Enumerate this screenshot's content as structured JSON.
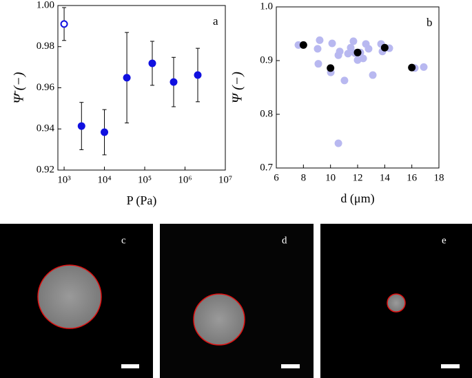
{
  "chart_data": [
    {
      "type": "scatter",
      "panel": "a",
      "x_label": "P (Pa)",
      "y_label": "Ψ̄ (−)",
      "xscale": "log",
      "xlim": [
        700,
        10000000
      ],
      "xticks": [
        {
          "value": 1000,
          "label": "10³"
        },
        {
          "value": 10000,
          "label": "10⁴"
        },
        {
          "value": 100000,
          "label": "10⁵"
        },
        {
          "value": 1000000,
          "label": "10⁶"
        },
        {
          "value": 10000000,
          "label": "10⁷"
        }
      ],
      "ylim": [
        0.92,
        1.0
      ],
      "yticks": [
        0.92,
        0.94,
        0.96,
        0.98,
        {
          "value": 1.0,
          "label": "1.00"
        }
      ],
      "series": [
        {
          "color": "#1010e0",
          "filled": false,
          "x": [
            1000
          ],
          "values": [
            0.991
          ],
          "errors": [
            0.008
          ]
        },
        {
          "color": "#1010e0",
          "filled": true,
          "x": [
            2700,
            10000,
            36000,
            154000,
            522000,
            2070000
          ],
          "values": [
            0.9414,
            0.9384,
            0.9649,
            0.9719,
            0.9628,
            0.9662
          ],
          "errors": [
            0.0115,
            0.011,
            0.022,
            0.0107,
            0.012,
            0.013
          ]
        }
      ]
    },
    {
      "type": "scatter",
      "panel": "b",
      "x_label": "d (μm)",
      "y_label": "Ψ (−)",
      "xlim": [
        6,
        18
      ],
      "xticks": [
        6,
        8,
        10,
        12,
        14,
        16,
        18
      ],
      "ylim": [
        0.7,
        1.0
      ],
      "yticks": [
        0.7,
        0.8,
        0.9,
        {
          "value": 1.0,
          "label": "1.0"
        }
      ],
      "series": [
        {
          "color": "#b8b8f0",
          "filled": true,
          "x": [
            7.63,
            9.05,
            9.2,
            9.1,
            10.12,
            10.02,
            10.58,
            10.68,
            11.29,
            11.03,
            11.49,
            11.69,
            11.8,
            12.0,
            12.2,
            12.41,
            12.61,
            12.81,
            13.12,
            13.73,
            13.83,
            14.34,
            16.22,
            16.88,
            10.58
          ],
          "values": [
            0.929,
            0.922,
            0.938,
            0.894,
            0.932,
            0.878,
            0.91,
            0.917,
            0.913,
            0.863,
            0.924,
            0.936,
            0.914,
            0.901,
            0.915,
            0.904,
            0.931,
            0.922,
            0.873,
            0.931,
            0.917,
            0.923,
            0.886,
            0.888,
            0.746
          ]
        },
        {
          "color": "#000000",
          "filled": true,
          "x": [
            8,
            10,
            12,
            14,
            16
          ],
          "values": [
            0.929,
            0.886,
            0.915,
            0.924,
            0.887
          ]
        }
      ]
    }
  ],
  "images": [
    {
      "label": "c"
    },
    {
      "label": "d"
    },
    {
      "label": "e"
    }
  ]
}
